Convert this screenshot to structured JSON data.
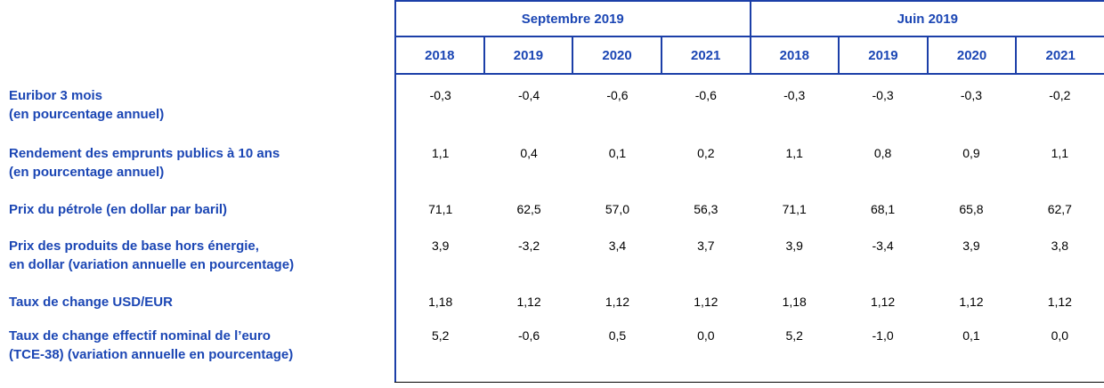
{
  "table": {
    "column_groups": [
      {
        "label": "Septembre 2019",
        "years": [
          "2018",
          "2019",
          "2020",
          "2021"
        ]
      },
      {
        "label": "Juin 2019",
        "years": [
          "2018",
          "2019",
          "2020",
          "2021"
        ]
      }
    ],
    "rows": [
      {
        "label_lines": [
          "Euribor 3 mois",
          "(en pourcentage annuel)"
        ],
        "values": [
          "-0,3",
          "-0,4",
          "-0,6",
          "-0,6",
          "-0,3",
          "-0,3",
          "-0,3",
          "-0,2"
        ]
      },
      {
        "label_lines": [
          "Rendement des emprunts publics à 10 ans",
          "(en pourcentage annuel)"
        ],
        "values": [
          "1,1",
          "0,4",
          "0,1",
          "0,2",
          "1,1",
          "0,8",
          "0,9",
          "1,1"
        ]
      },
      {
        "label_lines": [
          "Prix du pétrole (en dollar par baril)"
        ],
        "values": [
          "71,1",
          "62,5",
          "57,0",
          "56,3",
          "71,1",
          "68,1",
          "65,8",
          "62,7"
        ]
      },
      {
        "label_lines": [
          "Prix des produits de base hors énergie,",
          "en dollar (variation annuelle en pourcentage)"
        ],
        "values": [
          "3,9",
          "-3,2",
          "3,4",
          "3,7",
          "3,9",
          "-3,4",
          "3,9",
          "3,8"
        ]
      },
      {
        "label_lines": [
          "Taux de change USD/EUR"
        ],
        "values": [
          "1,18",
          "1,12",
          "1,12",
          "1,12",
          "1,18",
          "1,12",
          "1,12",
          "1,12"
        ]
      },
      {
        "label_lines": [
          "Taux de change effectif nominal de l’euro",
          "(TCE-38) (variation annuelle en pourcentage)"
        ],
        "values": [
          "5,2",
          "-0,6",
          "0,5",
          "0,0",
          "5,2",
          "-1,0",
          "0,1",
          "0,0"
        ]
      }
    ]
  },
  "colors": {
    "header_text": "#1B46B4",
    "label_text": "#1B46B4",
    "value_text": "#000000",
    "border_blue": "#1C3FA8",
    "bottom_border": "#000000"
  }
}
